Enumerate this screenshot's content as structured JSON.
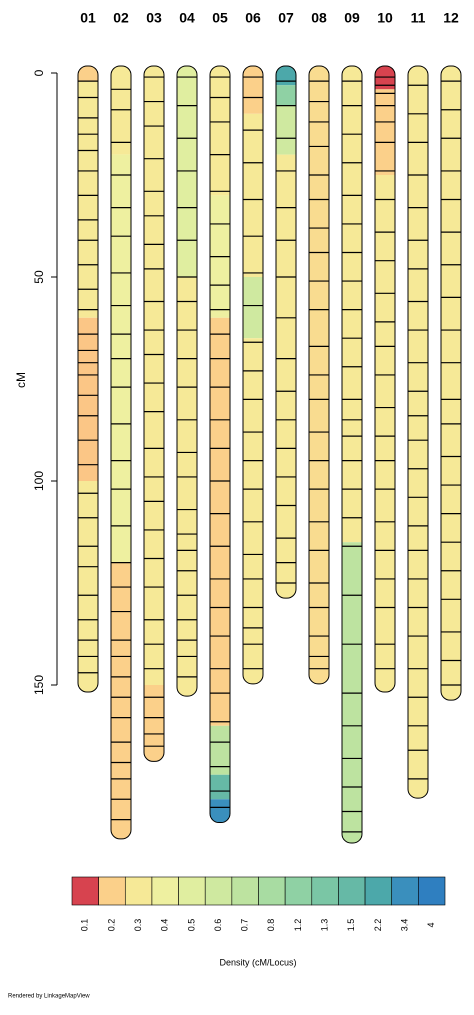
{
  "chart_data": {
    "type": "linkage-map",
    "y_label": "cM",
    "ylim": [
      0,
      150
    ],
    "yticks": [
      0,
      50,
      100,
      150
    ],
    "chromosomes": [
      {
        "name": "01",
        "length": 150,
        "segments": [
          {
            "from": 0,
            "to": 2,
            "color": "#fbd08a"
          },
          {
            "from": 2,
            "to": 60,
            "color": "#f6e997"
          },
          {
            "from": 60,
            "to": 100,
            "color": "#fbc686"
          },
          {
            "from": 100,
            "to": 150,
            "color": "#f6e997"
          }
        ],
        "markers": [
          2,
          6,
          11,
          15,
          19,
          24,
          30,
          36,
          41,
          47,
          53,
          58,
          64,
          68,
          71,
          74,
          79,
          84,
          90,
          96,
          103,
          109,
          116,
          121,
          128,
          134,
          139,
          143,
          147
        ]
      },
      {
        "name": "02",
        "length": 186,
        "segments": [
          {
            "from": 0,
            "to": 20,
            "color": "#f6e997"
          },
          {
            "from": 20,
            "to": 120,
            "color": "#eef0a0"
          },
          {
            "from": 120,
            "to": 186,
            "color": "#fbd08a"
          }
        ],
        "markers": [
          4,
          9,
          17,
          25,
          33,
          40,
          49,
          57,
          64,
          70,
          77,
          86,
          95,
          102,
          111,
          120,
          126,
          132,
          139,
          143,
          148,
          153,
          158,
          164,
          169,
          173,
          178,
          183
        ]
      },
      {
        "name": "03",
        "length": 167,
        "segments": [
          {
            "from": 0,
            "to": 150,
            "color": "#f6e997"
          },
          {
            "from": 150,
            "to": 167,
            "color": "#fbd08a"
          }
        ],
        "markers": [
          1,
          7,
          13,
          21,
          29,
          35,
          42,
          48,
          56,
          63,
          69,
          76,
          83,
          92,
          99,
          105,
          112,
          119,
          126,
          134,
          140,
          146,
          153,
          158,
          162,
          165
        ]
      },
      {
        "name": "04",
        "length": 151,
        "segments": [
          {
            "from": 0,
            "to": 50,
            "color": "#e0eea0"
          },
          {
            "from": 50,
            "to": 151,
            "color": "#f6e997"
          }
        ],
        "markers": [
          1,
          8,
          16,
          24,
          33,
          41,
          50,
          56,
          63,
          70,
          77,
          85,
          93,
          99,
          107,
          113,
          117,
          122,
          128,
          134,
          139,
          143,
          148
        ]
      },
      {
        "name": "05",
        "length": 182,
        "segments": [
          {
            "from": 0,
            "to": 30,
            "color": "#f6e997"
          },
          {
            "from": 30,
            "to": 60,
            "color": "#eef0a0"
          },
          {
            "from": 60,
            "to": 160,
            "color": "#fbd08a"
          },
          {
            "from": 160,
            "to": 172,
            "color": "#bde3a0"
          },
          {
            "from": 172,
            "to": 178,
            "color": "#66b9a6"
          },
          {
            "from": 178,
            "to": 182,
            "color": "#3a8fbd"
          }
        ],
        "markers": [
          1,
          6,
          12,
          20,
          29,
          37,
          45,
          52,
          58,
          64,
          70,
          77,
          85,
          92,
          100,
          108,
          116,
          124,
          131,
          138,
          146,
          152,
          159,
          164,
          170,
          176,
          180
        ]
      },
      {
        "name": "06",
        "length": 148,
        "segments": [
          {
            "from": 0,
            "to": 10,
            "color": "#fbd08a"
          },
          {
            "from": 10,
            "to": 50,
            "color": "#f6e997"
          },
          {
            "from": 50,
            "to": 65,
            "color": "#cfe9a0"
          },
          {
            "from": 65,
            "to": 148,
            "color": "#f6e997"
          }
        ],
        "markers": [
          1,
          6,
          14,
          22,
          31,
          40,
          49,
          57,
          66,
          73,
          80,
          88,
          95,
          102,
          110,
          118,
          124,
          131,
          136,
          140,
          146
        ]
      },
      {
        "name": "07",
        "length": 127,
        "segments": [
          {
            "from": 0,
            "to": 3,
            "color": "#4ca8aa"
          },
          {
            "from": 3,
            "to": 8,
            "color": "#8fd1a4"
          },
          {
            "from": 8,
            "to": 20,
            "color": "#cfe9a0"
          },
          {
            "from": 20,
            "to": 127,
            "color": "#f6e997"
          }
        ],
        "markers": [
          2,
          8,
          16,
          24,
          33,
          41,
          50,
          60,
          70,
          78,
          85,
          92,
          99,
          106,
          114,
          120,
          125
        ]
      },
      {
        "name": "08",
        "length": 148,
        "segments": [
          {
            "from": 0,
            "to": 148,
            "color": "#f9dc90"
          }
        ],
        "markers": [
          2,
          7,
          12,
          18,
          25,
          31,
          38,
          44,
          51,
          58,
          67,
          74,
          80,
          88,
          95,
          102,
          110,
          117,
          125,
          131,
          138,
          143,
          146
        ]
      },
      {
        "name": "09",
        "length": 187,
        "segments": [
          {
            "from": 0,
            "to": 115,
            "color": "#f6e997"
          },
          {
            "from": 115,
            "to": 187,
            "color": "#bde3a0"
          }
        ],
        "markers": [
          2,
          8,
          15,
          22,
          30,
          37,
          44,
          51,
          58,
          65,
          72,
          80,
          85,
          89,
          95,
          102,
          109,
          116,
          128,
          140,
          152,
          160,
          168,
          175,
          181,
          186
        ]
      },
      {
        "name": "10",
        "length": 150,
        "segments": [
          {
            "from": 0,
            "to": 4,
            "color": "#d7434f"
          },
          {
            "from": 4,
            "to": 25,
            "color": "#fbd08a"
          },
          {
            "from": 25,
            "to": 150,
            "color": "#f6e997"
          }
        ],
        "markers": [
          1,
          3,
          5,
          8,
          12,
          17,
          24,
          31,
          39,
          46,
          54,
          61,
          67,
          74,
          82,
          89,
          95,
          102,
          110,
          117,
          124,
          131,
          140,
          146
        ]
      },
      {
        "name": "11",
        "length": 176,
        "segments": [
          {
            "from": 0,
            "to": 176,
            "color": "#f6e997"
          }
        ],
        "markers": [
          3,
          10,
          17,
          25,
          33,
          41,
          48,
          56,
          63,
          71,
          78,
          84,
          90,
          97,
          104,
          111,
          117,
          124,
          131,
          138,
          146,
          153,
          160,
          166,
          173
        ]
      },
      {
        "name": "12",
        "length": 152,
        "segments": [
          {
            "from": 0,
            "to": 152,
            "color": "#f6e997"
          }
        ],
        "markers": [
          2,
          9,
          16,
          24,
          31,
          39,
          47,
          55,
          63,
          71,
          80,
          86,
          94,
          101,
          108,
          115,
          122,
          129,
          137,
          144,
          150
        ]
      }
    ],
    "legend": {
      "title": "Density (cM/Locus)",
      "labels": [
        "0.1",
        "0.2",
        "0.3",
        "0.4",
        "0.5",
        "0.6",
        "0.7",
        "0.8",
        "1.2",
        "1.3",
        "1.5",
        "2.2",
        "3.4",
        "4"
      ],
      "colors": [
        "#d7434f",
        "#fbd08a",
        "#f6e997",
        "#eef0a0",
        "#e0eea0",
        "#cfe9a0",
        "#bde3a0",
        "#a8dca2",
        "#8fd1a4",
        "#7ac6a5",
        "#66b9a6",
        "#4ca8aa",
        "#3a8fbd",
        "#2f7fc0"
      ]
    },
    "footer": "Rendered by LinkageMapView"
  }
}
